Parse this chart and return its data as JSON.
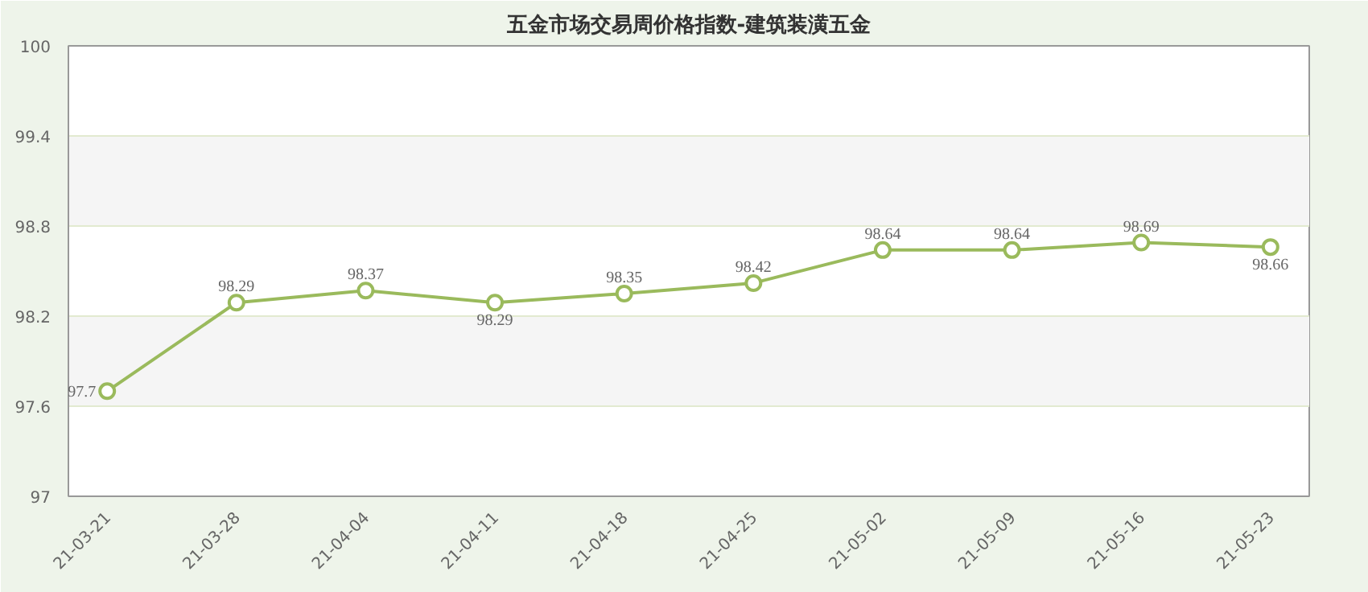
{
  "chart_data": {
    "type": "line",
    "title": "五金市场交易周价格指数-建筑装潢五金",
    "categories": [
      "21-03-21",
      "21-03-28",
      "21-04-04",
      "21-04-11",
      "21-04-18",
      "21-04-25",
      "21-05-02",
      "21-05-09",
      "21-05-16",
      "21-05-23"
    ],
    "series": [
      {
        "color": "#9aba5c",
        "values": [
          97.7,
          98.29,
          98.37,
          98.29,
          98.35,
          98.42,
          98.64,
          98.64,
          98.69,
          98.66
        ]
      }
    ],
    "ylim": [
      97,
      100
    ],
    "yticks": [
      97,
      97.6,
      98.2,
      98.8,
      99.4,
      100
    ],
    "grid": "y",
    "marker": "circle",
    "line_style": "solid",
    "data_labels": true
  }
}
